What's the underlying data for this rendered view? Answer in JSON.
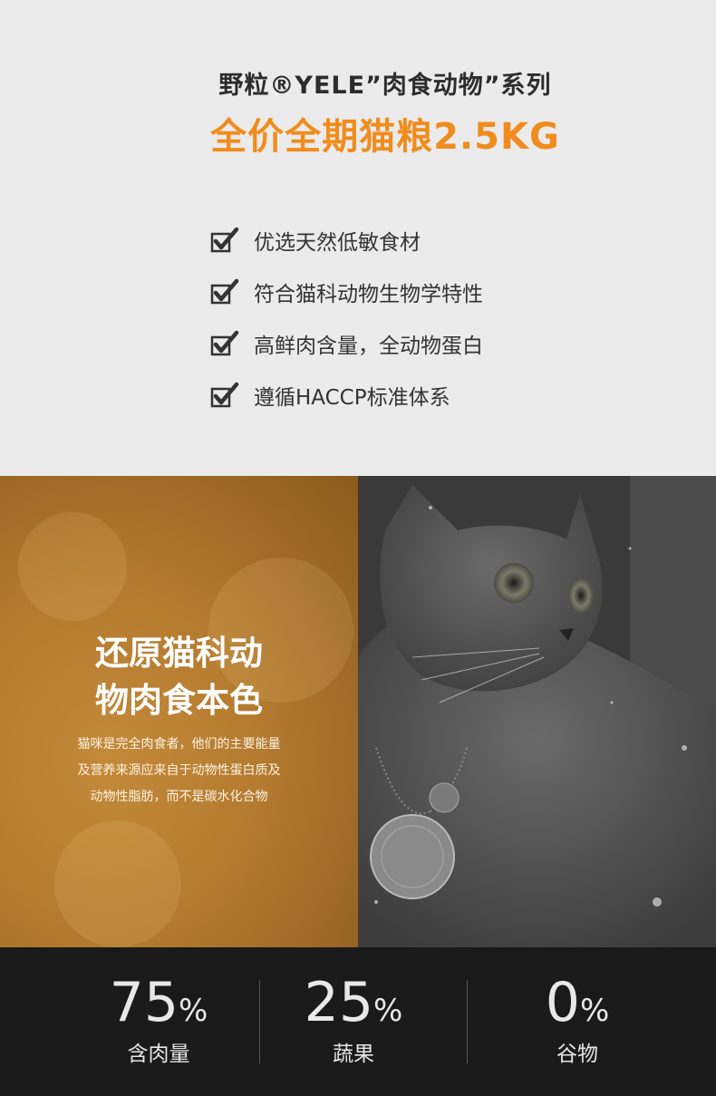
{
  "header": {
    "subtitle": "野粒®YELE”肉食动物”系列",
    "title": "全价全期猫粮2.5KG"
  },
  "features": [
    {
      "text": "优选天然低敏食材",
      "icon": "checkbox-check-icon"
    },
    {
      "text": "符合猫科动物生物学特性",
      "icon": "checkbox-check-icon"
    },
    {
      "text": "高鲜肉含量，全动物蛋白",
      "icon": "checkbox-check-icon"
    },
    {
      "text": "遵循HACCP标准体系",
      "icon": "checkbox-check-icon"
    }
  ],
  "panel": {
    "heading_line1": "还原猫科动",
    "heading_line2": "物肉食本色",
    "desc_line1": "猫咪是完全肉食者，他们的主要能量",
    "desc_line2": "及营养来源应来自于动物性蛋白质及",
    "desc_line3": "动物性脂肪，而不是碳水化合物"
  },
  "stats": [
    {
      "value": "75",
      "unit": "%",
      "label": "含肉量"
    },
    {
      "value": "25",
      "unit": "%",
      "label": "蔬果"
    },
    {
      "value": "0",
      "unit": "%",
      "label": "谷物"
    }
  ],
  "colors": {
    "accent": "#f08c1e",
    "panel_gold": "#b37a2f",
    "stats_bg": "#1a1a1a"
  }
}
